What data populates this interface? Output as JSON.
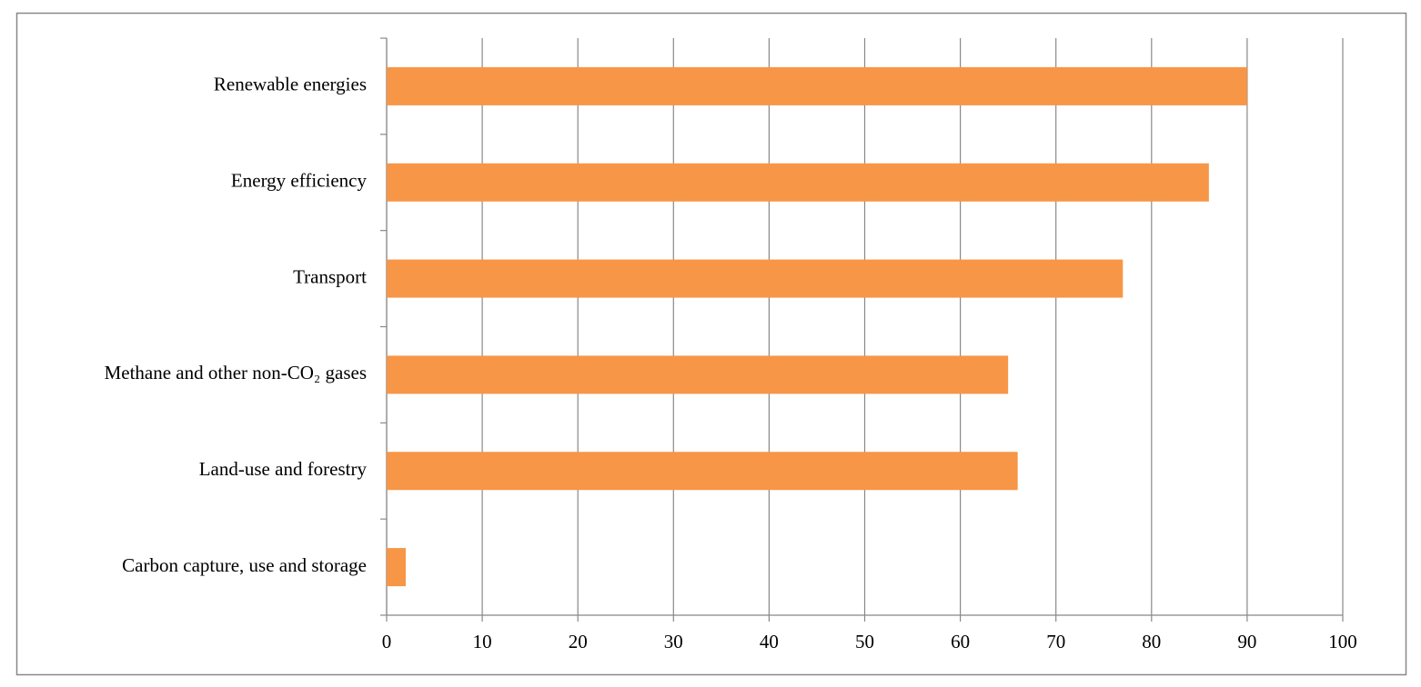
{
  "chart_data": {
    "type": "bar",
    "orientation": "horizontal",
    "categories": [
      "Renewable energies",
      "Energy efficiency",
      "Transport",
      "Methane and other non-CO₂ gases",
      "Land-use and forestry",
      "Carbon capture, use and storage"
    ],
    "values": [
      90,
      86,
      77,
      65,
      66,
      2
    ],
    "color": "#f79646",
    "xlim": [
      0,
      100
    ],
    "xticks": [
      0,
      10,
      20,
      30,
      40,
      50,
      60,
      70,
      80,
      90,
      100
    ],
    "grid": true
  }
}
